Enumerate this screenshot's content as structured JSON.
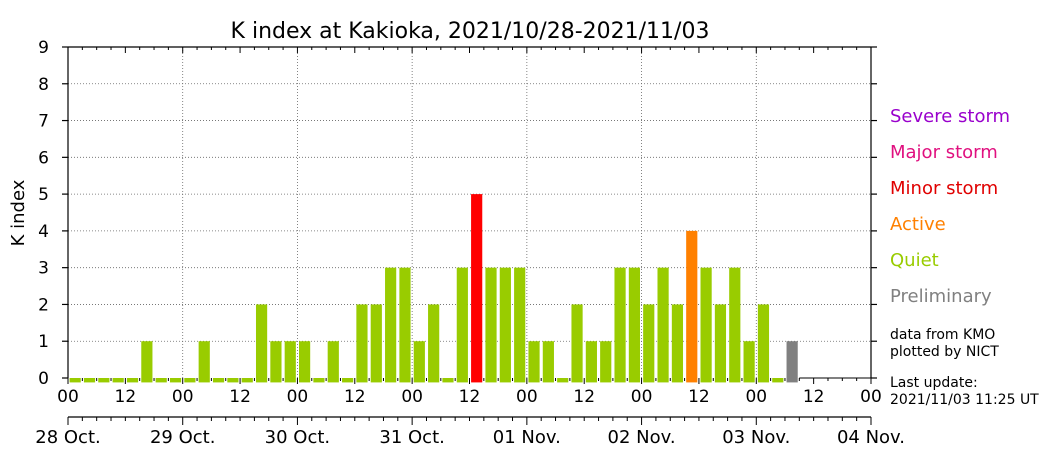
{
  "chart_data": {
    "type": "bar",
    "title": "K index at Kakioka, 2021/10/28-2021/11/03",
    "ylabel": "K index",
    "ylim": [
      0,
      9
    ],
    "yticks": [
      0,
      1,
      2,
      3,
      4,
      5,
      6,
      7,
      8,
      9
    ],
    "grid": true,
    "hour_tick_labels": [
      "00",
      "12",
      "00",
      "12",
      "00",
      "12",
      "00",
      "12",
      "00",
      "12",
      "00",
      "12",
      "00",
      "12",
      "00"
    ],
    "date_labels": [
      "28 Oct.",
      "29 Oct.",
      "30 Oct.",
      "31 Oct.",
      "01 Nov.",
      "02 Nov.",
      "03 Nov.",
      "04 Nov."
    ],
    "interval_hours": 3,
    "values": [
      0,
      0,
      0,
      0,
      0,
      1,
      0,
      0,
      0,
      1,
      0,
      0,
      0,
      2,
      1,
      1,
      1,
      0,
      1,
      0,
      2,
      2,
      3,
      3,
      1,
      2,
      0,
      3,
      5,
      3,
      3,
      3,
      1,
      1,
      0,
      2,
      1,
      1,
      3,
      3,
      2,
      3,
      2,
      4,
      3,
      2,
      3,
      1,
      2,
      0,
      1
    ],
    "categories": [
      "quiet",
      "quiet",
      "quiet",
      "quiet",
      "quiet",
      "quiet",
      "quiet",
      "quiet",
      "quiet",
      "quiet",
      "quiet",
      "quiet",
      "quiet",
      "quiet",
      "quiet",
      "quiet",
      "quiet",
      "quiet",
      "quiet",
      "quiet",
      "quiet",
      "quiet",
      "quiet",
      "quiet",
      "quiet",
      "quiet",
      "quiet",
      "quiet",
      "minor",
      "quiet",
      "quiet",
      "quiet",
      "quiet",
      "quiet",
      "quiet",
      "quiet",
      "quiet",
      "quiet",
      "quiet",
      "quiet",
      "quiet",
      "quiet",
      "quiet",
      "active",
      "quiet",
      "quiet",
      "quiet",
      "quiet",
      "quiet",
      "quiet",
      "preliminary"
    ],
    "colors": {
      "quiet": "#99cc00",
      "active": "#ff8000",
      "minor": "#ff0000",
      "preliminary": "#808080",
      "major": "#e0107f",
      "severe": "#9900cc"
    },
    "legend": [
      {
        "label": "Severe storm",
        "color": "#9900cc"
      },
      {
        "label": "Major storm",
        "color": "#e0107f"
      },
      {
        "label": "Minor storm",
        "color": "#e00000"
      },
      {
        "label": "Active",
        "color": "#ff8000"
      },
      {
        "label": "Quiet",
        "color": "#99cc00"
      },
      {
        "label": "Preliminary",
        "color": "#808080"
      }
    ],
    "legend_placement": "right"
  },
  "notes": {
    "source_line1": "data from KMO",
    "source_line2": "plotted by NICT",
    "update_line1": "Last update:",
    "update_line2": "2021/11/03 11:25 UT"
  }
}
